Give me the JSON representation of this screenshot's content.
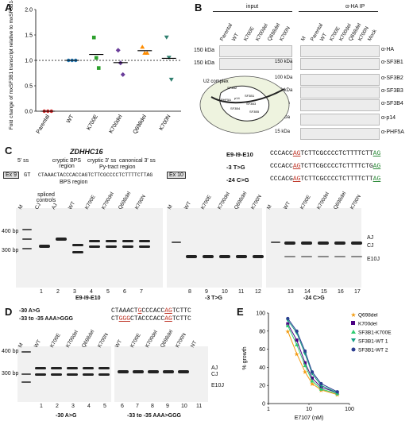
{
  "panels": {
    "a": "A",
    "b": "B",
    "c": "C",
    "d": "D",
    "e": "E"
  },
  "chart_data": [
    {
      "type": "scatter",
      "ylabel": "Fold change of mxSF3B1 transcript relative to mxSF3B1-WT",
      "categories": [
        "Parental",
        "WT",
        "K700E",
        "K700del",
        "Q698del",
        "K700N"
      ],
      "yticks": [
        "0.0",
        "0.5",
        "1.0",
        "1.5",
        "2.0"
      ],
      "ylim": [
        0,
        2.0
      ],
      "points": [
        {
          "cat": "Parental",
          "values": [
            0.0,
            0.0,
            0.0
          ],
          "color": "#d62728"
        },
        {
          "cat": "WT",
          "values": [
            1.0,
            1.0,
            1.0
          ],
          "color": "#1f77b4"
        },
        {
          "cat": "K700E",
          "values": [
            1.45,
            1.05,
            0.85
          ],
          "color": "#2ca02c"
        },
        {
          "cat": "K700del",
          "values": [
            1.2,
            0.95,
            0.72
          ],
          "color": "#6a3d9a"
        },
        {
          "cat": "Q698del",
          "values": [
            1.27,
            1.15,
            1.15
          ],
          "color": "#ff8c00"
        },
        {
          "cat": "K700N",
          "values": [
            1.45,
            1.05,
            0.62
          ],
          "color": "#2f7f6f"
        }
      ]
    },
    {
      "type": "line",
      "xlabel": "E7107 (nM)",
      "ylabel": "% growth",
      "xticks": [
        "1",
        "10",
        "100"
      ],
      "yticks": [
        "0",
        "20",
        "40",
        "60",
        "80",
        "100"
      ],
      "series": [
        {
          "name": "Q698del",
          "color": "#f39c12",
          "marker": "star",
          "x": [
            3,
            5,
            8,
            12,
            20,
            50
          ],
          "y": [
            80,
            55,
            35,
            22,
            15,
            10
          ]
        },
        {
          "name": "K700del",
          "color": "#4b0082",
          "marker": "square",
          "x": [
            3,
            5,
            8,
            12,
            20,
            50
          ],
          "y": [
            88,
            70,
            45,
            28,
            18,
            12
          ]
        },
        {
          "name": "SF3B1-K700E",
          "color": "#2ecc71",
          "marker": "triangle-up",
          "x": [
            3,
            5,
            8,
            12,
            20,
            50
          ],
          "y": [
            86,
            65,
            42,
            25,
            16,
            11
          ]
        },
        {
          "name": "SF3B1-WT 1",
          "color": "#16a085",
          "marker": "triangle-down",
          "x": [
            3,
            5,
            8,
            12,
            20,
            50
          ],
          "y": [
            92,
            78,
            55,
            33,
            20,
            12
          ]
        },
        {
          "name": "SF3B1-WT 2",
          "color": "#2c3e91",
          "marker": "circle",
          "x": [
            3,
            5,
            8,
            12,
            20,
            50
          ],
          "y": [
            94,
            80,
            58,
            35,
            22,
            13
          ]
        }
      ]
    }
  ],
  "panel_b": {
    "input_title": "input",
    "ip_title": "α-HA IP",
    "lanes_input": [
      "Parental",
      "WT",
      "K700E",
      "K700del",
      "Q698del",
      "K700N"
    ],
    "lanes_ip": [
      "M",
      "Parental",
      "WT",
      "K700E",
      "K700del",
      "Q698del",
      "K700N",
      "Mock"
    ],
    "markers_left": [
      "150 kDa",
      "150 kDa"
    ],
    "markers_right": [
      "150 kDa",
      "100 kDa",
      "100 kDa",
      "50 kDa",
      "15 kDa",
      "15 kDa"
    ],
    "antibodies": [
      "α-HA",
      "α-SF3B1",
      "α-SF3B2",
      "α-SF3B3",
      "α-SF3B4",
      "α-p14",
      "α-PHF5A"
    ],
    "complex_label": "U2 complex",
    "complex_parts": [
      "SF3B1",
      "SF3B2",
      "SF3B3",
      "SF3B4",
      "SF3B5",
      "PHF5A",
      "p14"
    ]
  },
  "panel_c": {
    "gene": "ZDHHC16",
    "ss5": "5' ss",
    "cryptic_bps": "cryptic BPS region",
    "bps": "BPS region",
    "cryptic_3ss": "cryptic 3' ss",
    "py_tract": "Py-tract region",
    "canonical_3ss": "canonical 3' ss",
    "exon9": "Ex 9",
    "exon10": "Ex 10",
    "construct": "GT",
    "construct_seq": "CTAAACTACCCACCAGTCTTCGCCCCTCTTTTCTTAG",
    "seq_labels": [
      "E9-I9-E10",
      "-3 T>G",
      "-24 C>G"
    ],
    "seqs": [
      {
        "a": "CCCACC",
        "b": "AG",
        "c": "TCTTCGCCCCTCTTTTCTT",
        "d": "AG"
      },
      {
        "a": "CCCACC",
        "b": "AG",
        "c": "TCTTCGCCCCTCTTTTCTG",
        "d": "AG"
      },
      {
        "a": "CCCACG",
        "b": "AG",
        "c": "TCTTCGCCCCTCTTTTCTT",
        "d": "AG"
      }
    ],
    "spliced_controls": "spliced controls",
    "gel1_lanes": [
      "M",
      "CJ",
      "AJ",
      "WT",
      "K700E",
      "K700del",
      "Q698del",
      "K700N"
    ],
    "gel2_lanes": [
      "M",
      "WT",
      "K700E",
      "K700del",
      "Q698del",
      "K700N"
    ],
    "gel3_lanes": [
      "M",
      "WT",
      "K700E",
      "K700del",
      "Q698del",
      "K700N"
    ],
    "gel1_nums": [
      "1",
      "2",
      "3",
      "4",
      "5",
      "6",
      "7"
    ],
    "gel2_nums": [
      "8",
      "9",
      "10",
      "11",
      "12"
    ],
    "gel3_nums": [
      "13",
      "14",
      "15",
      "16",
      "17"
    ],
    "bp400": "400 bp",
    "bp300": "300 bp",
    "gel1_caption": "E9-I9-E10",
    "gel2_caption": "-3 T>G",
    "gel3_caption": "-24 C>G",
    "right_labels": [
      "AJ",
      "CJ",
      "E10J"
    ]
  },
  "panel_d": {
    "mut1": "-30 A>G",
    "mut2": "-33 to -35 AAA>GGG",
    "seq1": {
      "a": "CTAAACT",
      "g": "G",
      "b": "CCCACC",
      "c": "AG",
      "d": "TCTTC"
    },
    "seq2": {
      "a": "CT",
      "g": "GGG",
      "b": "CTACCCACC",
      "c": "AG",
      "d": "TCTTC"
    },
    "gel1_lanes": [
      "M",
      "WT",
      "K700E",
      "K700del",
      "Q698del",
      "K700N"
    ],
    "gel2_lanes": [
      "WT",
      "K700E",
      "K700del",
      "Q698del",
      "K700N",
      "NT"
    ],
    "gel1_nums": [
      "1",
      "2",
      "3",
      "4",
      "5"
    ],
    "gel2_nums": [
      "6",
      "7",
      "8",
      "9",
      "10",
      "11"
    ],
    "bp400": "400 bp",
    "bp300": "300 bp",
    "gel1_caption": "-30 A>G",
    "gel2_caption": "-33 to -35 AAA>GGG",
    "right_labels": [
      "AJ",
      "CJ",
      "E10J"
    ]
  }
}
